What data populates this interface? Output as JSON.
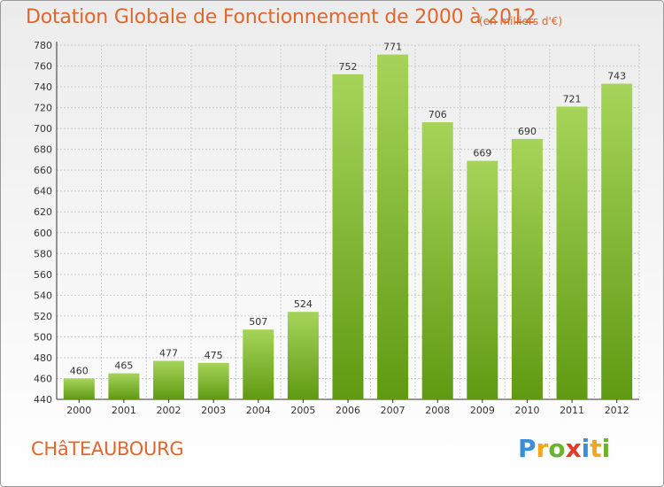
{
  "title": "Dotation Globale de Fonctionnement de 2000 à 2012",
  "subtitle": "(en milliers d'€)",
  "city": "CHâTEAUBOURG",
  "logo": {
    "letters": [
      "P",
      "r",
      "o",
      "x",
      "i",
      "t",
      "i"
    ],
    "colors": [
      "#3a8fd8",
      "#f5a51e",
      "#6ab42d",
      "#e23a2d",
      "#3a8fd8",
      "#f5a51e",
      "#6ab42d"
    ]
  },
  "colors": {
    "accent": "#e0672b",
    "bar_light": "#a6d45a",
    "bar_dark": "#5f9a12",
    "grid": "#c8c8c8"
  },
  "chart_data": {
    "type": "bar",
    "title": "Dotation Globale de Fonctionnement de 2000 à 2012",
    "subtitle": "(en milliers d'€)",
    "categories": [
      "2000",
      "2001",
      "2002",
      "2003",
      "2004",
      "2005",
      "2006",
      "2007",
      "2008",
      "2009",
      "2010",
      "2011",
      "2012"
    ],
    "values": [
      460,
      465,
      477,
      475,
      507,
      524,
      752,
      771,
      706,
      669,
      690,
      721,
      743
    ],
    "ylim": [
      440,
      780
    ],
    "ytick_step": 20,
    "grid": true,
    "legend": "none"
  }
}
